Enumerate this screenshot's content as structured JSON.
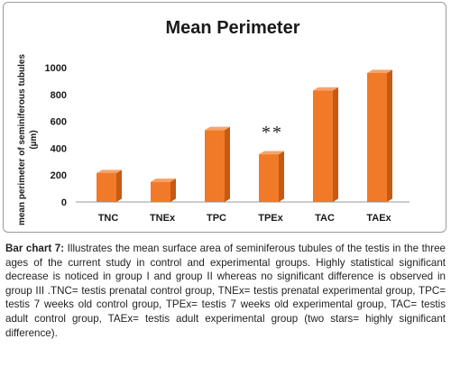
{
  "chart_data": {
    "type": "bar",
    "title": "Mean Perimeter",
    "ylabel_line1": "mean perimeter of seminiferous tubules",
    "ylabel_line2": "(µm)",
    "xlabel": "",
    "categories": [
      "TNC",
      "TNEx",
      "TPC",
      "TPEx",
      "TAC",
      "TAEx"
    ],
    "values": [
      215,
      150,
      535,
      355,
      830,
      960
    ],
    "ylim": [
      0,
      1000
    ],
    "yticks": [
      0,
      200,
      400,
      600,
      800,
      1000
    ],
    "annotations": [
      {
        "category": "TPEx",
        "text": "**"
      }
    ],
    "grid": false,
    "legend": "none",
    "bar_color": "#f07a28",
    "bar_shadow_color": "#c65a12"
  },
  "caption": {
    "label": "Bar chart 7:",
    "text": " Illustrates the mean surface area of seminiferous tubules of the testis in the three ages of the current study in control and experimental groups. Highly statistical significant decrease is noticed in group I and group II whereas no significant difference is observed in group III .TNC= testis prenatal control group, TNEx= testis prenatal experimental group, TPC= testis 7 weeks old control group, TPEx= testis 7 weeks old experimental group, TAC= testis adult control group, TAEx= testis adult experimental group (two stars= highly significant difference)."
  }
}
